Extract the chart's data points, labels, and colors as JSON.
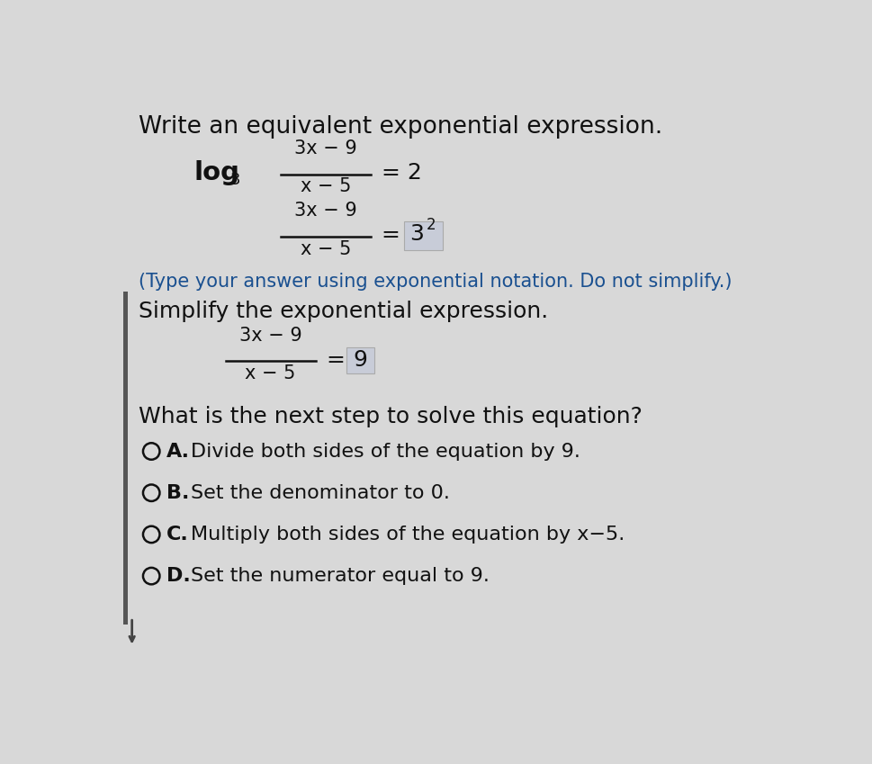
{
  "background_color": "#d8d8d8",
  "left_bar_color": "#555555",
  "title": "Write an equivalent exponential expression.",
  "note": "(Type your answer using exponential notation. Do not simplify.)",
  "section2_title": "Simplify the exponential expression.",
  "question": "What is the next step to solve this equation?",
  "options": [
    {
      "label": "A.",
      "text": "Divide both sides of the equation by 9."
    },
    {
      "label": "B.",
      "text": "Set the denominator to 0."
    },
    {
      "label": "C.",
      "text": "Multiply both sides of the equation by x−5."
    },
    {
      "label": "D.",
      "text": "Set the numerator equal to 9."
    }
  ],
  "highlight_box_color": "#c8ccd8",
  "text_color": "#111111",
  "note_color": "#1a5090",
  "font_size_title": 19,
  "font_size_body": 16,
  "font_size_math_large": 18,
  "font_size_math_small": 15,
  "font_size_note": 15,
  "font_size_sub": 13,
  "font_size_super": 12
}
